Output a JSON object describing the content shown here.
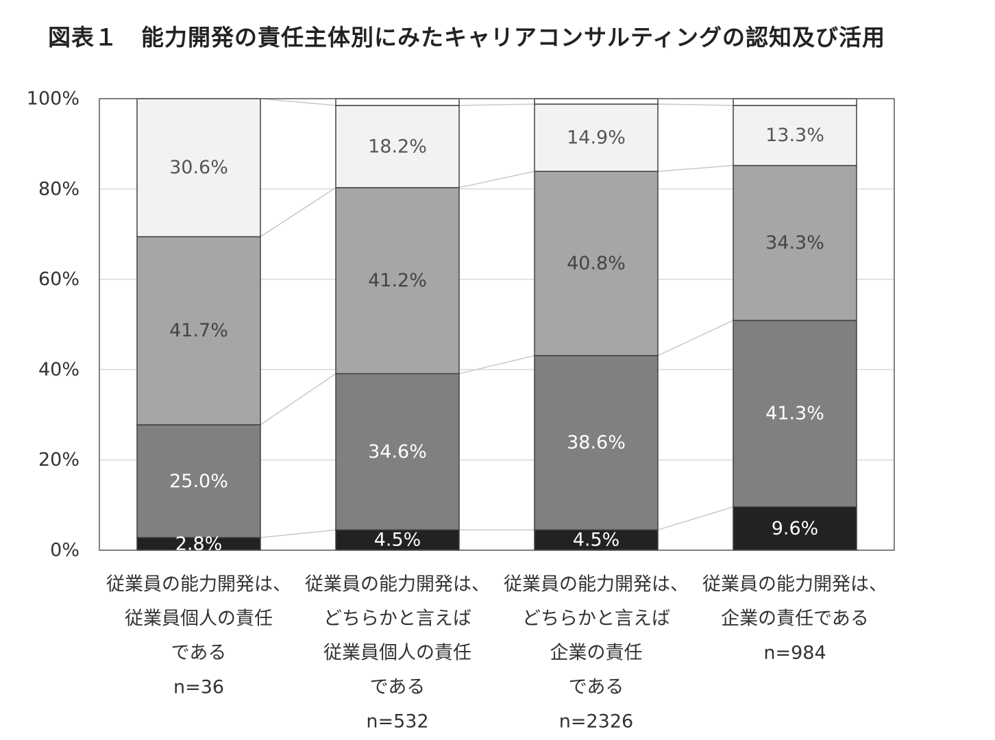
{
  "title": "図表１　能力開発の責任主体別にみたキャリアコンサルティングの認知及び活用",
  "chart_data": {
    "type": "bar",
    "stacked": true,
    "percent_stacked": true,
    "categories": [
      [
        "従業員の能力開発は、",
        "従業員個人の責任",
        "である",
        "n=36"
      ],
      [
        "従業員の能力開発は、",
        "どちらかと言えば",
        "従業員個人の責任",
        "である",
        "n=532"
      ],
      [
        "従業員の能力開発は、",
        "どちらかと言えば",
        "企業の責任",
        "である",
        "n=2326"
      ],
      [
        "従業員の能力開発は、",
        "企業の責任である",
        "n=984"
      ]
    ],
    "series": [
      {
        "values": [
          2.8,
          4.5,
          4.5,
          9.6
        ],
        "labels": [
          "2.8%",
          "4.5%",
          "4.5%",
          "9.6%"
        ],
        "color": "#222222",
        "label_color": "#ffffff"
      },
      {
        "values": [
          25.0,
          34.6,
          38.6,
          41.3
        ],
        "labels": [
          "25.0%",
          "34.6%",
          "38.6%",
          "41.3%"
        ],
        "color": "#808080",
        "label_color": "#ffffff"
      },
      {
        "values": [
          41.7,
          41.2,
          40.8,
          34.3
        ],
        "labels": [
          "41.7%",
          "41.2%",
          "40.8%",
          "34.3%"
        ],
        "color": "#a6a6a6",
        "label_color": "#444444"
      },
      {
        "values": [
          30.6,
          18.2,
          14.9,
          13.3
        ],
        "labels": [
          "30.6%",
          "18.2%",
          "14.9%",
          "13.3%"
        ],
        "color": "#f2f2f2",
        "label_color": "#555555"
      },
      {
        "values": [
          0.0,
          1.5,
          1.2,
          1.5
        ],
        "labels": [
          "",
          "",
          "",
          ""
        ],
        "color": "#ffffff",
        "label_color": "#555555"
      }
    ],
    "yticks": [
      "0%",
      "20%",
      "40%",
      "60%",
      "80%",
      "100%"
    ],
    "ylim": [
      0,
      100
    ],
    "grid": true,
    "series_lines": true,
    "legend": "none"
  }
}
